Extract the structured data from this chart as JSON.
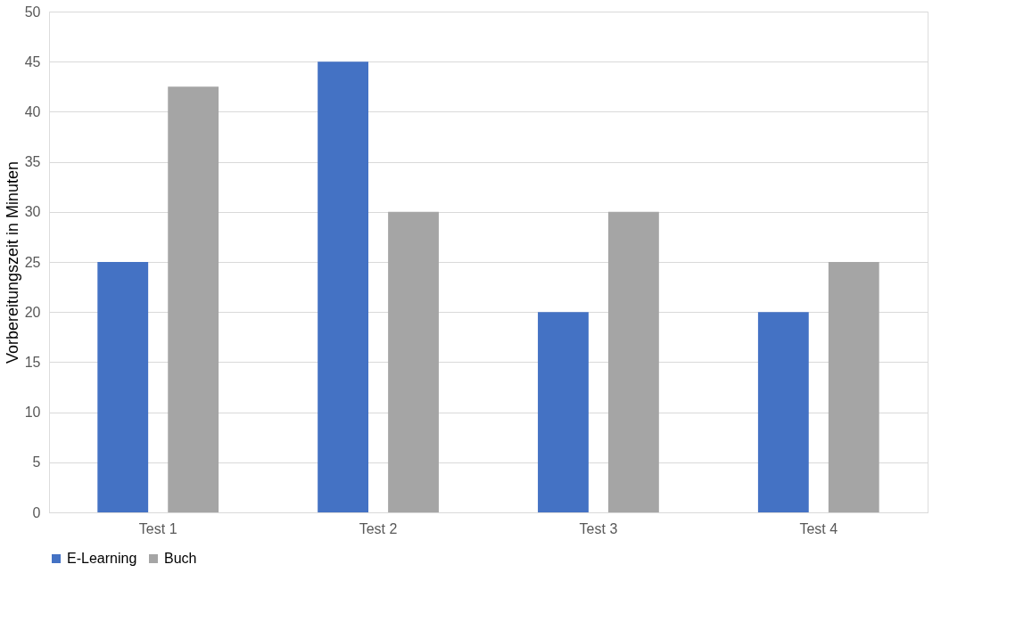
{
  "chart_data": {
    "type": "bar",
    "ylabel": "Vorbereitungszeit in Minuten",
    "categories": [
      "Test 1",
      "Test 2",
      "Test 3",
      "Test 4"
    ],
    "series": [
      {
        "name": "E-Learning",
        "color": "#4472c4",
        "values": [
          25,
          45,
          20,
          20
        ]
      },
      {
        "name": "Buch",
        "color": "#a5a5a5",
        "values": [
          42.5,
          30,
          30,
          25
        ]
      }
    ],
    "ylim": [
      0,
      50
    ],
    "yticks": [
      0,
      5,
      10,
      15,
      20,
      25,
      30,
      35,
      40,
      45,
      50
    ],
    "grid": "y",
    "legend": "bottom"
  }
}
